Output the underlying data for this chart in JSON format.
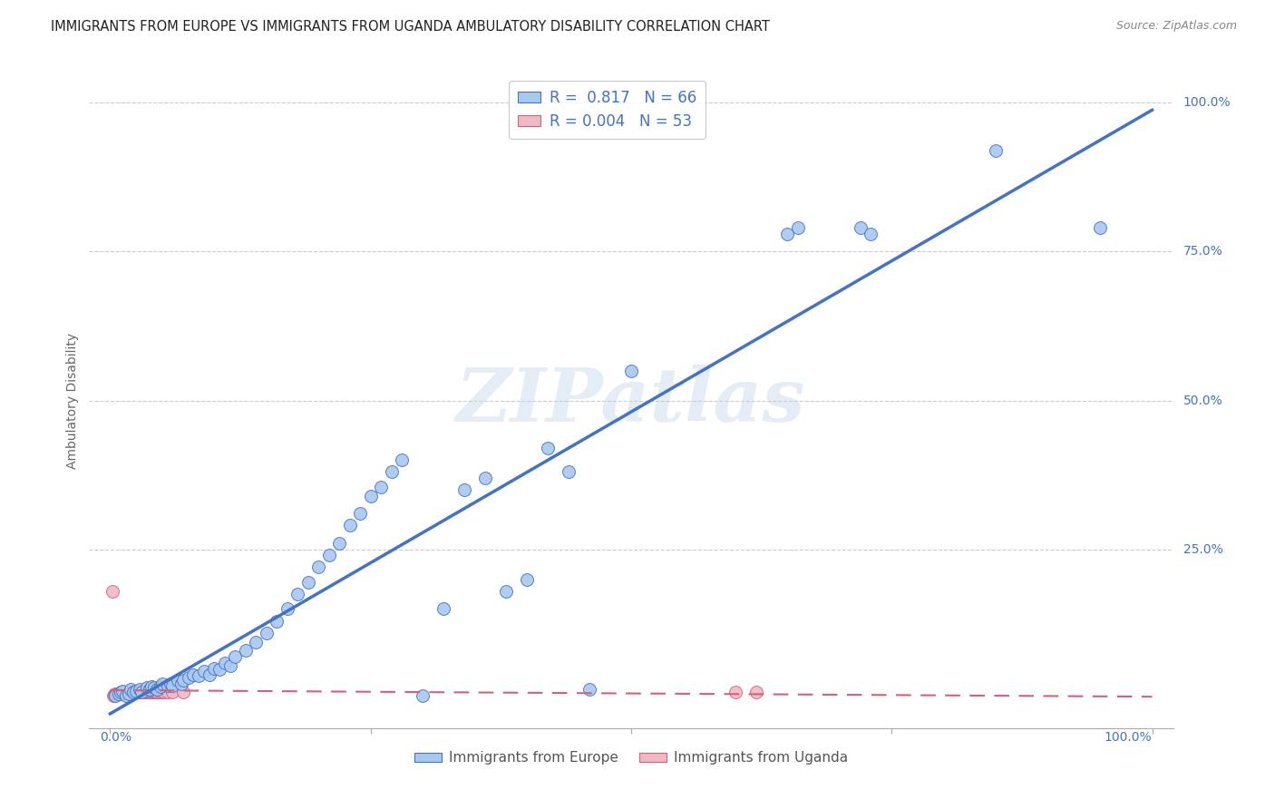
{
  "title": "IMMIGRANTS FROM EUROPE VS IMMIGRANTS FROM UGANDA AMBULATORY DISABILITY CORRELATION CHART",
  "source": "Source: ZipAtlas.com",
  "ylabel": "Ambulatory Disability",
  "europe_color": "#a8c8f0",
  "europe_edge_color": "#4472c4",
  "uganda_color": "#f0b8c4",
  "uganda_edge_color": "#d4607a",
  "europe_R": 0.817,
  "europe_N": 66,
  "uganda_R": 0.004,
  "uganda_N": 53,
  "europe_line_color": "#4472c4",
  "uganda_line_color": "#d4607a",
  "watermark": "ZIPatlas",
  "legend_label_europe": "Immigrants from Europe",
  "legend_label_uganda": "Immigrants from Uganda",
  "europe_scatter_x": [
    0.005,
    0.008,
    0.01,
    0.012,
    0.015,
    0.018,
    0.02,
    0.022,
    0.025,
    0.028,
    0.03,
    0.035,
    0.038,
    0.04,
    0.042,
    0.045,
    0.048,
    0.05,
    0.055,
    0.058,
    0.06,
    0.065,
    0.068,
    0.07,
    0.075,
    0.08,
    0.085,
    0.09,
    0.095,
    0.1,
    0.105,
    0.11,
    0.115,
    0.12,
    0.13,
    0.14,
    0.15,
    0.16,
    0.17,
    0.18,
    0.19,
    0.2,
    0.21,
    0.22,
    0.23,
    0.24,
    0.25,
    0.26,
    0.27,
    0.28,
    0.3,
    0.32,
    0.34,
    0.36,
    0.38,
    0.4,
    0.42,
    0.44,
    0.46,
    0.5,
    0.65,
    0.66,
    0.72,
    0.73,
    0.85,
    0.95
  ],
  "europe_scatter_y": [
    0.005,
    0.008,
    0.01,
    0.012,
    0.005,
    0.008,
    0.015,
    0.01,
    0.012,
    0.015,
    0.01,
    0.018,
    0.015,
    0.02,
    0.018,
    0.015,
    0.02,
    0.025,
    0.022,
    0.025,
    0.022,
    0.03,
    0.025,
    0.03,
    0.035,
    0.04,
    0.038,
    0.045,
    0.04,
    0.05,
    0.048,
    0.06,
    0.055,
    0.07,
    0.08,
    0.095,
    0.11,
    0.13,
    0.15,
    0.175,
    0.195,
    0.22,
    0.24,
    0.26,
    0.29,
    0.31,
    0.34,
    0.355,
    0.38,
    0.4,
    0.005,
    0.15,
    0.35,
    0.37,
    0.18,
    0.2,
    0.42,
    0.38,
    0.015,
    0.55,
    0.78,
    0.79,
    0.79,
    0.78,
    0.92,
    0.79
  ],
  "uganda_scatter_x": [
    0.003,
    0.004,
    0.005,
    0.006,
    0.007,
    0.008,
    0.009,
    0.01,
    0.011,
    0.012,
    0.013,
    0.014,
    0.015,
    0.016,
    0.017,
    0.018,
    0.019,
    0.02,
    0.021,
    0.022,
    0.023,
    0.024,
    0.025,
    0.026,
    0.027,
    0.028,
    0.029,
    0.03,
    0.031,
    0.032,
    0.033,
    0.034,
    0.035,
    0.036,
    0.037,
    0.038,
    0.039,
    0.04,
    0.041,
    0.042,
    0.043,
    0.044,
    0.045,
    0.046,
    0.048,
    0.05,
    0.052,
    0.055,
    0.06,
    0.07,
    0.6,
    0.62,
    0.002
  ],
  "uganda_scatter_y": [
    0.005,
    0.006,
    0.007,
    0.006,
    0.008,
    0.007,
    0.008,
    0.009,
    0.008,
    0.009,
    0.01,
    0.009,
    0.01,
    0.011,
    0.01,
    0.009,
    0.01,
    0.011,
    0.01,
    0.011,
    0.012,
    0.011,
    0.012,
    0.011,
    0.01,
    0.011,
    0.012,
    0.011,
    0.012,
    0.011,
    0.01,
    0.011,
    0.01,
    0.011,
    0.012,
    0.011,
    0.01,
    0.011,
    0.01,
    0.011,
    0.01,
    0.011,
    0.01,
    0.011,
    0.01,
    0.011,
    0.01,
    0.011,
    0.01,
    0.011,
    0.01,
    0.01,
    0.18
  ],
  "xlim": [
    0.0,
    1.0
  ],
  "ylim": [
    0.0,
    1.0
  ],
  "ytick_positions": [
    0.25,
    0.5,
    0.75,
    1.0
  ],
  "ytick_labels": [
    "25.0%",
    "50.0%",
    "75.0%",
    "100.0%"
  ]
}
